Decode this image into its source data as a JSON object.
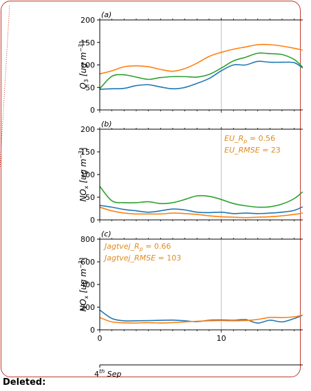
{
  "deleted_label": "Deleted:",
  "date_label_sup": "th",
  "date_label_num": "4",
  "date_label_month": "Sep",
  "chart_data": [
    {
      "type": "line",
      "panel_label": "(a)",
      "ylabel_base": "O",
      "ylabel_sub": "3",
      "ylabel_unit": "[ug m",
      "ylabel_exp": "−3",
      "ylim": [
        0,
        200
      ],
      "yticks": [
        "0",
        "50",
        "100",
        "150",
        "200"
      ],
      "xlim": [
        0,
        16.7
      ],
      "xticks": [
        "0",
        "10"
      ],
      "grid_x": [
        10
      ],
      "annotations": [],
      "series": [
        {
          "color": "#1f77b4",
          "x": [
            0,
            1,
            2,
            3,
            4,
            5,
            6,
            7,
            8,
            9,
            10,
            11,
            12,
            13,
            14,
            15,
            16,
            16.7
          ],
          "values": [
            46,
            47,
            48,
            54,
            56,
            51,
            47,
            50,
            59,
            70,
            87,
            100,
            100,
            108,
            106,
            106,
            105,
            93
          ]
        },
        {
          "color": "#2ca02c",
          "x": [
            0,
            1,
            2,
            3,
            4,
            5,
            6,
            7,
            8,
            9,
            10,
            11,
            12,
            13,
            14,
            15,
            16,
            16.7
          ],
          "values": [
            47,
            75,
            78,
            73,
            68,
            72,
            74,
            74,
            73,
            79,
            93,
            109,
            117,
            126,
            125,
            123,
            112,
            95
          ]
        },
        {
          "color": "#ff7f0e",
          "x": [
            0,
            1,
            2,
            3,
            4,
            5,
            6,
            7,
            8,
            9,
            10,
            11,
            12,
            13,
            14,
            15,
            16,
            16.7
          ],
          "values": [
            80,
            87,
            96,
            98,
            96,
            90,
            86,
            92,
            104,
            119,
            128,
            135,
            140,
            145,
            145,
            142,
            137,
            133
          ]
        }
      ]
    },
    {
      "type": "line",
      "panel_label": "(b)",
      "ylabel_base": "NO",
      "ylabel_sub": "x",
      "ylabel_unit": "[ug m",
      "ylabel_exp": "−3",
      "ylim": [
        0,
        200
      ],
      "yticks": [
        "0",
        "50",
        "100",
        "150",
        "200"
      ],
      "xlim": [
        0,
        16.7
      ],
      "xticks": [
        "0",
        "10"
      ],
      "grid_x": [
        10
      ],
      "annotations": [
        "EU_R_p = 0.56",
        "EU_RMSE = 23"
      ],
      "series": [
        {
          "color": "#1f77b4",
          "x": [
            0,
            1,
            2,
            3,
            4,
            5,
            6,
            7,
            8,
            9,
            10,
            11,
            12,
            13,
            14,
            15,
            16,
            16.7
          ],
          "values": [
            32,
            28,
            23,
            20,
            17,
            20,
            24,
            22,
            17,
            16,
            17,
            14,
            15,
            14,
            15,
            17,
            21,
            29
          ]
        },
        {
          "color": "#2ca02c",
          "x": [
            0,
            1,
            2,
            3,
            4,
            5,
            6,
            7,
            8,
            9,
            10,
            11,
            12,
            13,
            14,
            15,
            16,
            16.7
          ],
          "values": [
            74,
            42,
            38,
            38,
            40,
            36,
            38,
            45,
            53,
            52,
            45,
            36,
            31,
            28,
            29,
            35,
            47,
            62
          ]
        },
        {
          "color": "#ff7f0e",
          "x": [
            0,
            1,
            2,
            3,
            4,
            5,
            6,
            7,
            8,
            9,
            10,
            11,
            12,
            13,
            14,
            15,
            16,
            16.7
          ],
          "values": [
            28,
            20,
            15,
            13,
            13,
            13,
            15,
            14,
            12,
            9,
            7,
            6,
            5,
            6,
            7,
            9,
            12,
            15
          ]
        }
      ]
    },
    {
      "type": "line",
      "panel_label": "(c)",
      "ylabel_base": "NO",
      "ylabel_sub": "x",
      "ylabel_unit": "[ug m",
      "ylabel_exp": "−3",
      "ylim": [
        0,
        800
      ],
      "yticks": [
        "0",
        "200",
        "400",
        "600",
        "800"
      ],
      "xlim": [
        0,
        16.7
      ],
      "xticks": [
        "0",
        "10"
      ],
      "grid_x": [
        10
      ],
      "annotations": [
        "Jagtvej_R_p = 0.66",
        "Jagtvej_RMSE = 103"
      ],
      "series": [
        {
          "color": "#1f77b4",
          "x": [
            0,
            1,
            2,
            3,
            4,
            5,
            6,
            7,
            8,
            9,
            10,
            11,
            12,
            13,
            14,
            15,
            16,
            16.7
          ],
          "values": [
            175,
            100,
            80,
            80,
            82,
            84,
            86,
            80,
            72,
            85,
            88,
            84,
            90,
            60,
            85,
            70,
            100,
            130
          ]
        },
        {
          "color": "#ff7f0e",
          "x": [
            0,
            1,
            2,
            3,
            4,
            5,
            6,
            7,
            8,
            9,
            10,
            11,
            12,
            13,
            14,
            15,
            16,
            16.7
          ],
          "values": [
            108,
            70,
            62,
            60,
            64,
            60,
            64,
            70,
            76,
            80,
            82,
            80,
            82,
            92,
            110,
            108,
            115,
            130
          ]
        }
      ]
    }
  ]
}
